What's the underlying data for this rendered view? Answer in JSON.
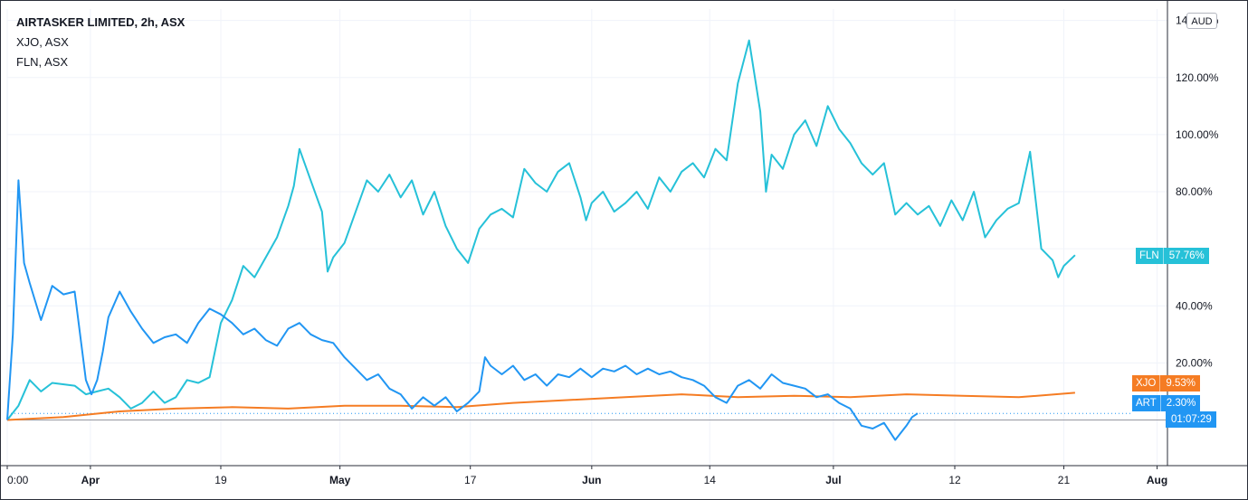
{
  "legend": {
    "main": "AIRTASKER LIMITED, 2h, ASX",
    "compare_1": "XJO, ASX",
    "compare_2": "FLN, ASX"
  },
  "currency_button": "AUD",
  "colors": {
    "ART": "#2196f3",
    "XJO": "#f57c23",
    "FLN": "#26c1d8",
    "grid": "#f0f3fa",
    "axis": "#2a2e39"
  },
  "price_tags": {
    "FLN": {
      "symbol": "FLN",
      "value": "57.76%"
    },
    "XJO": {
      "symbol": "XJO",
      "value": "9.53%"
    },
    "ART": {
      "symbol": "ART",
      "value": "2.30%",
      "countdown": "01:07:29"
    }
  },
  "chart_data": {
    "type": "line",
    "y_axis": {
      "unit": "%",
      "ylim": [
        -16,
        144
      ],
      "ticks": [
        "140.00%",
        "120.00%",
        "100.00%",
        "80.00%",
        "40.00%",
        "20.00%"
      ]
    },
    "x_axis": {
      "xlim": [
        0,
        100
      ],
      "ticks": [
        {
          "label": "0:00",
          "x": 0,
          "bold": false
        },
        {
          "label": "Apr",
          "x": 7.4,
          "bold": true
        },
        {
          "label": "19",
          "x": 19.0,
          "bold": false
        },
        {
          "label": "May",
          "x": 29.6,
          "bold": true
        },
        {
          "label": "17",
          "x": 41.2,
          "bold": false
        },
        {
          "label": "Jun",
          "x": 52.0,
          "bold": true
        },
        {
          "label": "14",
          "x": 62.5,
          "bold": false
        },
        {
          "label": "Jul",
          "x": 73.5,
          "bold": true
        },
        {
          "label": "12",
          "x": 84.3,
          "bold": false
        },
        {
          "label": "21",
          "x": 94.0,
          "bold": false
        },
        {
          "label": "Aug",
          "x": 102.3,
          "bold": true
        }
      ]
    },
    "grid": true,
    "series": [
      {
        "name": "FLN",
        "points": [
          [
            0,
            0
          ],
          [
            1,
            5
          ],
          [
            2,
            14
          ],
          [
            3,
            10
          ],
          [
            4,
            13
          ],
          [
            6,
            12
          ],
          [
            7,
            9
          ],
          [
            8,
            10
          ],
          [
            9,
            11
          ],
          [
            10,
            8
          ],
          [
            11,
            4
          ],
          [
            12,
            6
          ],
          [
            13,
            10
          ],
          [
            14,
            6
          ],
          [
            15,
            8
          ],
          [
            16,
            14
          ],
          [
            17,
            13
          ],
          [
            18,
            15
          ],
          [
            19,
            34
          ],
          [
            20,
            42
          ],
          [
            21,
            54
          ],
          [
            22,
            50
          ],
          [
            23,
            57
          ],
          [
            24,
            64
          ],
          [
            25,
            75
          ],
          [
            25.5,
            82
          ],
          [
            26,
            95
          ],
          [
            27,
            84
          ],
          [
            28,
            73
          ],
          [
            28.5,
            52
          ],
          [
            29,
            57
          ],
          [
            30,
            62
          ],
          [
            31,
            73
          ],
          [
            32,
            84
          ],
          [
            33,
            80
          ],
          [
            34,
            86
          ],
          [
            35,
            78
          ],
          [
            36,
            84
          ],
          [
            37,
            72
          ],
          [
            38,
            80
          ],
          [
            39,
            68
          ],
          [
            40,
            60
          ],
          [
            41,
            55
          ],
          [
            42,
            67
          ],
          [
            43,
            72
          ],
          [
            44,
            74
          ],
          [
            45,
            71
          ],
          [
            46,
            88
          ],
          [
            47,
            83
          ],
          [
            48,
            80
          ],
          [
            49,
            87
          ],
          [
            50,
            90
          ],
          [
            51,
            78
          ],
          [
            51.5,
            70
          ],
          [
            52,
            76
          ],
          [
            53,
            80
          ],
          [
            54,
            73
          ],
          [
            55,
            76
          ],
          [
            56,
            80
          ],
          [
            57,
            74
          ],
          [
            58,
            85
          ],
          [
            59,
            80
          ],
          [
            60,
            87
          ],
          [
            61,
            90
          ],
          [
            62,
            85
          ],
          [
            63,
            95
          ],
          [
            64,
            91
          ],
          [
            65,
            118
          ],
          [
            66,
            133
          ],
          [
            67,
            108
          ],
          [
            67.5,
            80
          ],
          [
            68,
            93
          ],
          [
            69,
            88
          ],
          [
            70,
            100
          ],
          [
            71,
            105
          ],
          [
            72,
            96
          ],
          [
            73,
            110
          ],
          [
            74,
            102
          ],
          [
            75,
            97
          ],
          [
            76,
            90
          ],
          [
            77,
            86
          ],
          [
            78,
            90
          ],
          [
            79,
            72
          ],
          [
            80,
            76
          ],
          [
            81,
            72
          ],
          [
            82,
            75
          ],
          [
            83,
            68
          ],
          [
            84,
            77
          ],
          [
            85,
            70
          ],
          [
            86,
            80
          ],
          [
            87,
            64
          ],
          [
            88,
            70
          ],
          [
            89,
            74
          ],
          [
            90,
            76
          ],
          [
            91,
            94
          ],
          [
            92,
            60
          ],
          [
            93,
            56
          ],
          [
            93.5,
            50
          ],
          [
            94,
            54
          ],
          [
            95,
            57.76
          ]
        ]
      },
      {
        "name": "ART",
        "points": [
          [
            0,
            0
          ],
          [
            0.5,
            30
          ],
          [
            1,
            84
          ],
          [
            1.5,
            55
          ],
          [
            2,
            48
          ],
          [
            3,
            35
          ],
          [
            4,
            47
          ],
          [
            5,
            44
          ],
          [
            6,
            45
          ],
          [
            7,
            14
          ],
          [
            7.5,
            9
          ],
          [
            8,
            14
          ],
          [
            8.5,
            24
          ],
          [
            9,
            36
          ],
          [
            10,
            45
          ],
          [
            11,
            38
          ],
          [
            12,
            32
          ],
          [
            13,
            27
          ],
          [
            14,
            29
          ],
          [
            15,
            30
          ],
          [
            16,
            27
          ],
          [
            17,
            34
          ],
          [
            18,
            39
          ],
          [
            19,
            37
          ],
          [
            20,
            34
          ],
          [
            21,
            30
          ],
          [
            22,
            32
          ],
          [
            23,
            28
          ],
          [
            24,
            26
          ],
          [
            25,
            32
          ],
          [
            26,
            34
          ],
          [
            27,
            30
          ],
          [
            28,
            28
          ],
          [
            29,
            27
          ],
          [
            30,
            22
          ],
          [
            31,
            18
          ],
          [
            32,
            14
          ],
          [
            33,
            16
          ],
          [
            34,
            11
          ],
          [
            35,
            9
          ],
          [
            36,
            4
          ],
          [
            37,
            8
          ],
          [
            38,
            5
          ],
          [
            39,
            8
          ],
          [
            40,
            3
          ],
          [
            41,
            6
          ],
          [
            42,
            10
          ],
          [
            42.5,
            22
          ],
          [
            43,
            19
          ],
          [
            44,
            16
          ],
          [
            45,
            19
          ],
          [
            46,
            14
          ],
          [
            47,
            16
          ],
          [
            48,
            12
          ],
          [
            49,
            16
          ],
          [
            50,
            15
          ],
          [
            51,
            18
          ],
          [
            52,
            15
          ],
          [
            53,
            18
          ],
          [
            54,
            17
          ],
          [
            55,
            19
          ],
          [
            56,
            16
          ],
          [
            57,
            18
          ],
          [
            58,
            16
          ],
          [
            59,
            17
          ],
          [
            60,
            15
          ],
          [
            61,
            14
          ],
          [
            62,
            12
          ],
          [
            63,
            8
          ],
          [
            64,
            6
          ],
          [
            65,
            12
          ],
          [
            66,
            14
          ],
          [
            67,
            11
          ],
          [
            68,
            16
          ],
          [
            69,
            13
          ],
          [
            70,
            12
          ],
          [
            71,
            11
          ],
          [
            72,
            8
          ],
          [
            73,
            9
          ],
          [
            74,
            6
          ],
          [
            75,
            4
          ],
          [
            76,
            -2
          ],
          [
            77,
            -3
          ],
          [
            78,
            -1
          ],
          [
            79,
            -7
          ],
          [
            80,
            -2
          ],
          [
            80.5,
            1
          ],
          [
            81,
            2.3
          ]
        ]
      },
      {
        "name": "XJO",
        "points": [
          [
            0,
            0
          ],
          [
            5,
            1
          ],
          [
            10,
            3
          ],
          [
            15,
            4
          ],
          [
            20,
            4.5
          ],
          [
            25,
            4
          ],
          [
            30,
            5
          ],
          [
            35,
            5
          ],
          [
            40,
            4.5
          ],
          [
            45,
            6
          ],
          [
            50,
            7
          ],
          [
            55,
            8
          ],
          [
            60,
            9
          ],
          [
            65,
            8
          ],
          [
            70,
            8.5
          ],
          [
            75,
            8
          ],
          [
            80,
            9
          ],
          [
            85,
            8.5
          ],
          [
            90,
            8
          ],
          [
            95,
            9.53
          ]
        ]
      }
    ]
  }
}
